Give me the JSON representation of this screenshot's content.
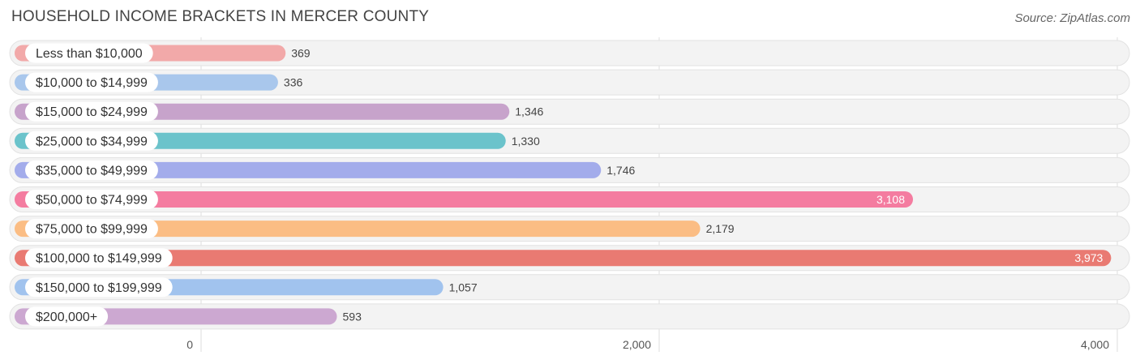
{
  "header": {
    "title": "HOUSEHOLD INCOME BRACKETS IN MERCER COUNTY",
    "source": "Source: ZipAtlas.com"
  },
  "chart_data": {
    "type": "bar",
    "orientation": "horizontal",
    "title": "HOUSEHOLD INCOME BRACKETS IN MERCER COUNTY",
    "xlabel": "",
    "ylabel": "",
    "xlim": [
      0,
      4000
    ],
    "ticks": [
      0,
      2000,
      4000
    ],
    "tick_labels": [
      "0",
      "2,000",
      "4,000"
    ],
    "grid": true,
    "categories": [
      "Less than $10,000",
      "$10,000 to $14,999",
      "$15,000 to $24,999",
      "$25,000 to $34,999",
      "$35,000 to $49,999",
      "$50,000 to $74,999",
      "$75,000 to $99,999",
      "$100,000 to $149,999",
      "$150,000 to $199,999",
      "$200,000+"
    ],
    "values": [
      369,
      336,
      1346,
      1330,
      1746,
      3108,
      2179,
      3973,
      1057,
      593
    ],
    "value_labels": [
      "369",
      "336",
      "1,346",
      "1,330",
      "1,746",
      "3,108",
      "2,179",
      "3,973",
      "1,057",
      "593"
    ],
    "colors": [
      "#f2a9a9",
      "#a9c7ec",
      "#c7a3cb",
      "#6bc3cb",
      "#a3aceb",
      "#f47ca0",
      "#fbbd84",
      "#e97a72",
      "#a1c3ee",
      "#cca8d1"
    ]
  }
}
